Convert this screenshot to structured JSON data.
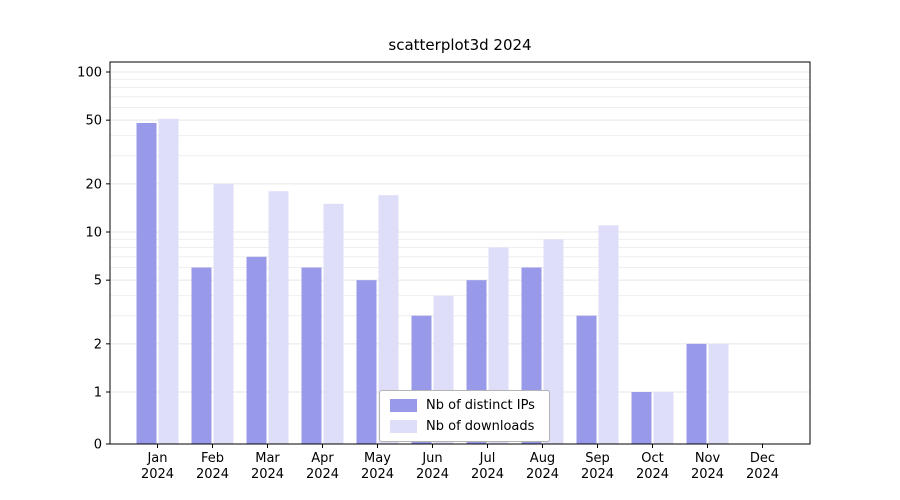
{
  "chart_data": {
    "type": "bar",
    "title": "scatterplot3d 2024",
    "categories": [
      "Jan",
      "Feb",
      "Mar",
      "Apr",
      "May",
      "Jun",
      "Jul",
      "Aug",
      "Sep",
      "Oct",
      "Nov",
      "Dec"
    ],
    "year_label": "2024",
    "series": [
      {
        "name": "Nb of distinct IPs",
        "color": "#9999ea",
        "values": [
          48,
          6,
          7,
          6,
          5,
          3,
          5,
          6,
          3,
          1,
          2,
          0
        ]
      },
      {
        "name": "Nb of downloads",
        "color": "#dedef8",
        "values": [
          51,
          20,
          18,
          15,
          17,
          4,
          8,
          9,
          11,
          1,
          2,
          0
        ]
      }
    ],
    "yscale": "symlog",
    "ylim": [
      0,
      100
    ],
    "yticks": [
      0,
      1,
      2,
      5,
      10,
      20,
      50,
      100
    ],
    "minor_yticks": [
      3,
      4,
      6,
      7,
      8,
      9,
      30,
      40,
      60,
      70,
      80,
      90
    ],
    "grid": true,
    "legend_position": "lower center",
    "grid_color": "#e7e7e7",
    "axis_color": "#000000",
    "background_color": "#ffffff"
  }
}
